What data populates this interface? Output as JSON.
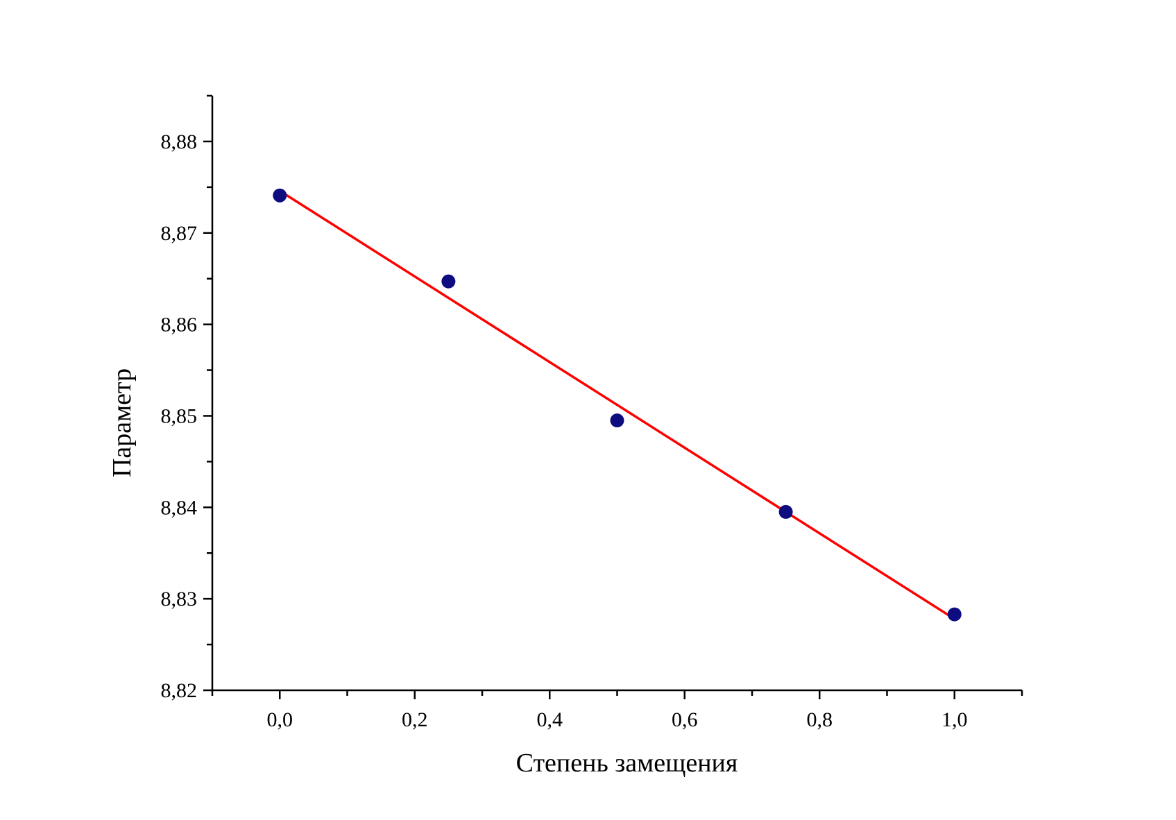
{
  "chart_data": {
    "type": "scatter",
    "title": "",
    "xlabel": "Степень замещения",
    "ylabel": "Параметр",
    "xlim": [
      -0.1,
      1.1
    ],
    "ylim": [
      8.82,
      8.885
    ],
    "x_ticks": [
      0.0,
      0.2,
      0.4,
      0.6,
      0.8,
      1.0
    ],
    "x_tick_labels": [
      "0,0",
      "0,2",
      "0,4",
      "0,6",
      "0,8",
      "1,0"
    ],
    "y_ticks": [
      8.82,
      8.83,
      8.84,
      8.85,
      8.86,
      8.87,
      8.88
    ],
    "y_tick_labels": [
      "8,82",
      "8,83",
      "8,84",
      "8,85",
      "8,86",
      "8,87",
      "8,88"
    ],
    "grid": false,
    "legend": "none",
    "series": [
      {
        "kind": "points",
        "x": [
          0.0,
          0.25,
          0.5,
          0.75,
          1.0
        ],
        "y": [
          8.8741,
          8.8647,
          8.8495,
          8.8395,
          8.8283
        ],
        "color": "#0d0d80"
      },
      {
        "kind": "fit-line",
        "x": [
          0.0,
          1.0
        ],
        "y": [
          8.8746,
          8.8278
        ],
        "color": "#ff0000"
      }
    ]
  }
}
